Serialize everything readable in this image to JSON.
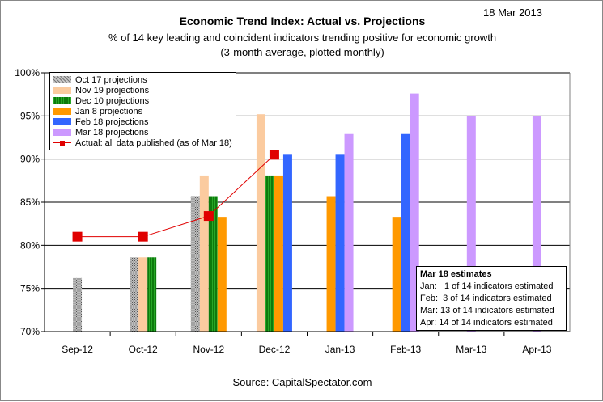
{
  "date_label": "18 Mar 2013",
  "source": "Source: CapitalSpectator.com",
  "estimates_box": {
    "title": "Mar 18 estimates",
    "lines": [
      "Jan:   1 of 14 indicators estimated",
      "Feb:  3 of 14 indicators estimated",
      "Mar: 13 of 14 indicators estimated",
      "Apr: 14 of 14 indicators estimated"
    ]
  },
  "colors": {
    "oct17": "#999999",
    "nov19": "#fbcb9f",
    "dec10": "#118211",
    "jan8": "#ff9900",
    "feb18": "#3366ff",
    "mar18": "#cc99ff",
    "actual": "#e00000"
  },
  "chart_data": {
    "type": "bar",
    "title": "Economic Trend Index: Actual vs. Projections",
    "subtitle": "% of 14 key leading and coincident indicators trending positive for economic growth",
    "subtitle2": "(3-month average, plotted monthly)",
    "xlabel": "",
    "ylabel": "",
    "ylim": [
      70,
      100
    ],
    "y_ticks": [
      "70%",
      "75%",
      "80%",
      "85%",
      "90%",
      "95%",
      "100%"
    ],
    "grid": true,
    "legend_position": "top-left",
    "categories": [
      "Sep-12",
      "Oct-12",
      "Nov-12",
      "Dec-12",
      "Jan-13",
      "Feb-13",
      "Mar-13",
      "Apr-13"
    ],
    "series": [
      {
        "name": "Oct 17 projections",
        "key": "oct17",
        "pattern": "dotted",
        "values": [
          76.2,
          78.6,
          85.7,
          null,
          null,
          null,
          null,
          null
        ]
      },
      {
        "name": "Nov 19 projections",
        "key": "nov19",
        "values": [
          null,
          78.6,
          88.1,
          95.2,
          null,
          null,
          null,
          null
        ]
      },
      {
        "name": "Dec 10 projections",
        "key": "dec10",
        "pattern": "striped",
        "values": [
          null,
          78.6,
          85.7,
          88.1,
          null,
          null,
          null,
          null
        ]
      },
      {
        "name": "Jan 8 projections",
        "key": "jan8",
        "values": [
          null,
          null,
          83.3,
          88.1,
          85.7,
          83.3,
          null,
          null
        ]
      },
      {
        "name": "Feb 18 projections",
        "key": "feb18",
        "values": [
          null,
          null,
          null,
          90.5,
          90.5,
          92.9,
          null,
          null
        ]
      },
      {
        "name": "Mar 18 projections",
        "key": "mar18",
        "values": [
          null,
          null,
          null,
          null,
          92.9,
          97.6,
          95.0,
          95.0
        ]
      }
    ],
    "line_series": {
      "name": "Actual: all data published (as of Mar 18)",
      "key": "actual",
      "values": [
        81.0,
        81.0,
        83.4,
        90.5,
        null,
        null,
        null,
        null
      ]
    }
  }
}
